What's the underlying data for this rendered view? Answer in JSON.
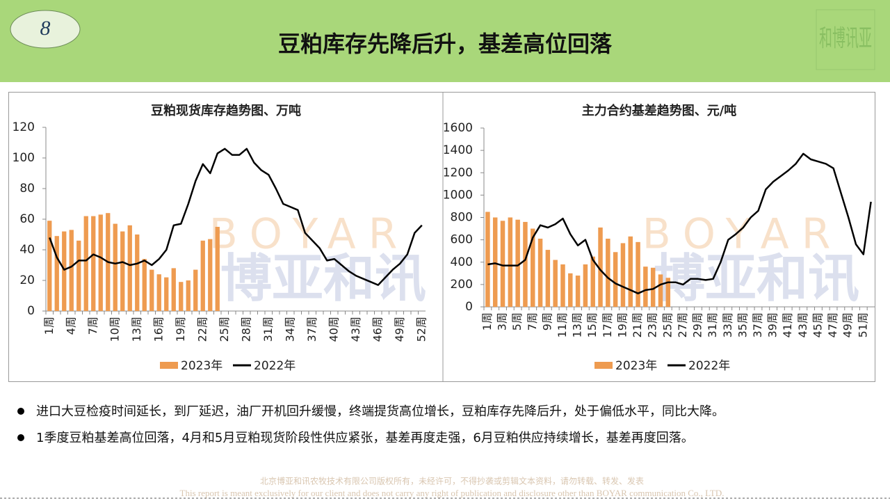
{
  "header": {
    "page_number": "8",
    "title": "豆粕库存先降后升，基差高位回落",
    "logo": "和博讯亚"
  },
  "watermark": {
    "latin": "BOYAR",
    "chinese": "博亚和讯"
  },
  "chart_data": [
    {
      "type": "combo",
      "title": "豆粕现货库存趋势图、万吨",
      "categories": [
        "1周",
        null,
        null,
        "4周",
        null,
        null,
        "7周",
        null,
        null,
        "10周",
        null,
        null,
        "13周",
        null,
        null,
        "16周",
        null,
        null,
        "19周",
        null,
        null,
        "22周",
        null,
        null,
        "25周",
        null,
        null,
        "28周",
        null,
        null,
        "31周",
        null,
        null,
        "34周",
        null,
        null,
        "37周",
        null,
        null,
        "40周",
        null,
        null,
        "43周",
        null,
        null,
        "46周",
        null,
        null,
        "49周",
        null,
        null,
        "52周"
      ],
      "ylim": [
        0,
        120
      ],
      "yticks": [
        0,
        20,
        40,
        60,
        80,
        100,
        120
      ],
      "series": [
        {
          "name": "2023年",
          "type": "bar",
          "color": "#ee9b50",
          "values": [
            59,
            49,
            52,
            53,
            46,
            62,
            62,
            63,
            64,
            57,
            52,
            56,
            50,
            34,
            27,
            24,
            22,
            28,
            19,
            20,
            27,
            46,
            47,
            55,
            null,
            null,
            null,
            null,
            null,
            null,
            null,
            null,
            null,
            null,
            null,
            null,
            null,
            null,
            null,
            null,
            null,
            null,
            null,
            null,
            null,
            null,
            null,
            null,
            null,
            null,
            null,
            null
          ]
        },
        {
          "name": "2022年",
          "type": "line",
          "color": "#000000",
          "values": [
            48,
            35,
            27,
            29,
            33,
            33,
            37,
            35,
            32,
            31,
            32,
            30,
            31,
            33,
            30,
            34,
            40,
            56,
            57,
            70,
            85,
            96,
            90,
            103,
            106,
            102,
            102,
            106,
            97,
            92,
            89,
            80,
            70,
            68,
            66,
            51,
            46,
            41,
            33,
            34,
            30,
            26,
            23,
            21,
            19,
            17,
            22,
            27,
            31,
            37,
            51,
            56
          ]
        }
      ]
    },
    {
      "type": "combo",
      "title": "主力合约基差趋势图、元/吨",
      "categories": [
        "1周",
        null,
        "3周",
        null,
        "5周",
        null,
        "7周",
        null,
        "9周",
        null,
        "11周",
        null,
        "13周",
        null,
        "15周",
        null,
        "17周",
        null,
        "19周",
        null,
        "21周",
        null,
        "23周",
        null,
        "25周",
        null,
        "27周",
        null,
        "29周",
        null,
        "31周",
        null,
        "33周",
        null,
        "35周",
        null,
        "37周",
        null,
        "39周",
        null,
        "41周",
        null,
        "43周",
        null,
        "45周",
        null,
        "47周",
        null,
        "49周",
        null,
        "51周",
        null
      ],
      "ylim": [
        0,
        1600
      ],
      "yticks": [
        0,
        200,
        400,
        600,
        800,
        1000,
        1200,
        1400,
        1600
      ],
      "series": [
        {
          "name": "2023年",
          "type": "bar",
          "color": "#ee9b50",
          "values": [
            850,
            800,
            770,
            800,
            780,
            760,
            700,
            610,
            510,
            420,
            380,
            300,
            280,
            380,
            450,
            710,
            610,
            490,
            570,
            630,
            580,
            360,
            350,
            290,
            260,
            null,
            null,
            null,
            null,
            null,
            null,
            null,
            null,
            null,
            null,
            null,
            null,
            null,
            null,
            null,
            null,
            null,
            null,
            null,
            null,
            null,
            null,
            null,
            null,
            null,
            null,
            null
          ]
        },
        {
          "name": "2022年",
          "type": "line",
          "color": "#000000",
          "values": [
            380,
            390,
            370,
            370,
            370,
            420,
            620,
            730,
            710,
            740,
            790,
            650,
            550,
            600,
            420,
            330,
            260,
            210,
            180,
            150,
            120,
            150,
            160,
            200,
            220,
            220,
            200,
            250,
            250,
            240,
            250,
            400,
            600,
            650,
            710,
            800,
            860,
            1050,
            1120,
            1170,
            1220,
            1280,
            1370,
            1320,
            1300,
            1280,
            1240,
            1020,
            800,
            560,
            470,
            940
          ]
        }
      ]
    }
  ],
  "bullets": [
    "进口大豆检疫时间延长，到厂延迟，油厂开机回升缓慢，终端提货高位增长，豆粕库存先降后升，处于偏低水平，同比大降。",
    "1季度豆粕基差高位回落，4月和5月豆粕现货阶段性供应紧张，基差再度走强，6月豆粕供应持续增长，基差再度回落。"
  ],
  "footer": [
    "北京博亚和讯农牧技术有限公司版权所有，未经许可，不得抄袭或剪辑文本资料，请勿转载、转发、发表",
    "This report is meant exclusively for our client and does not carry any right of publication and disclosure other than BOYAR communication Co., LTD."
  ]
}
